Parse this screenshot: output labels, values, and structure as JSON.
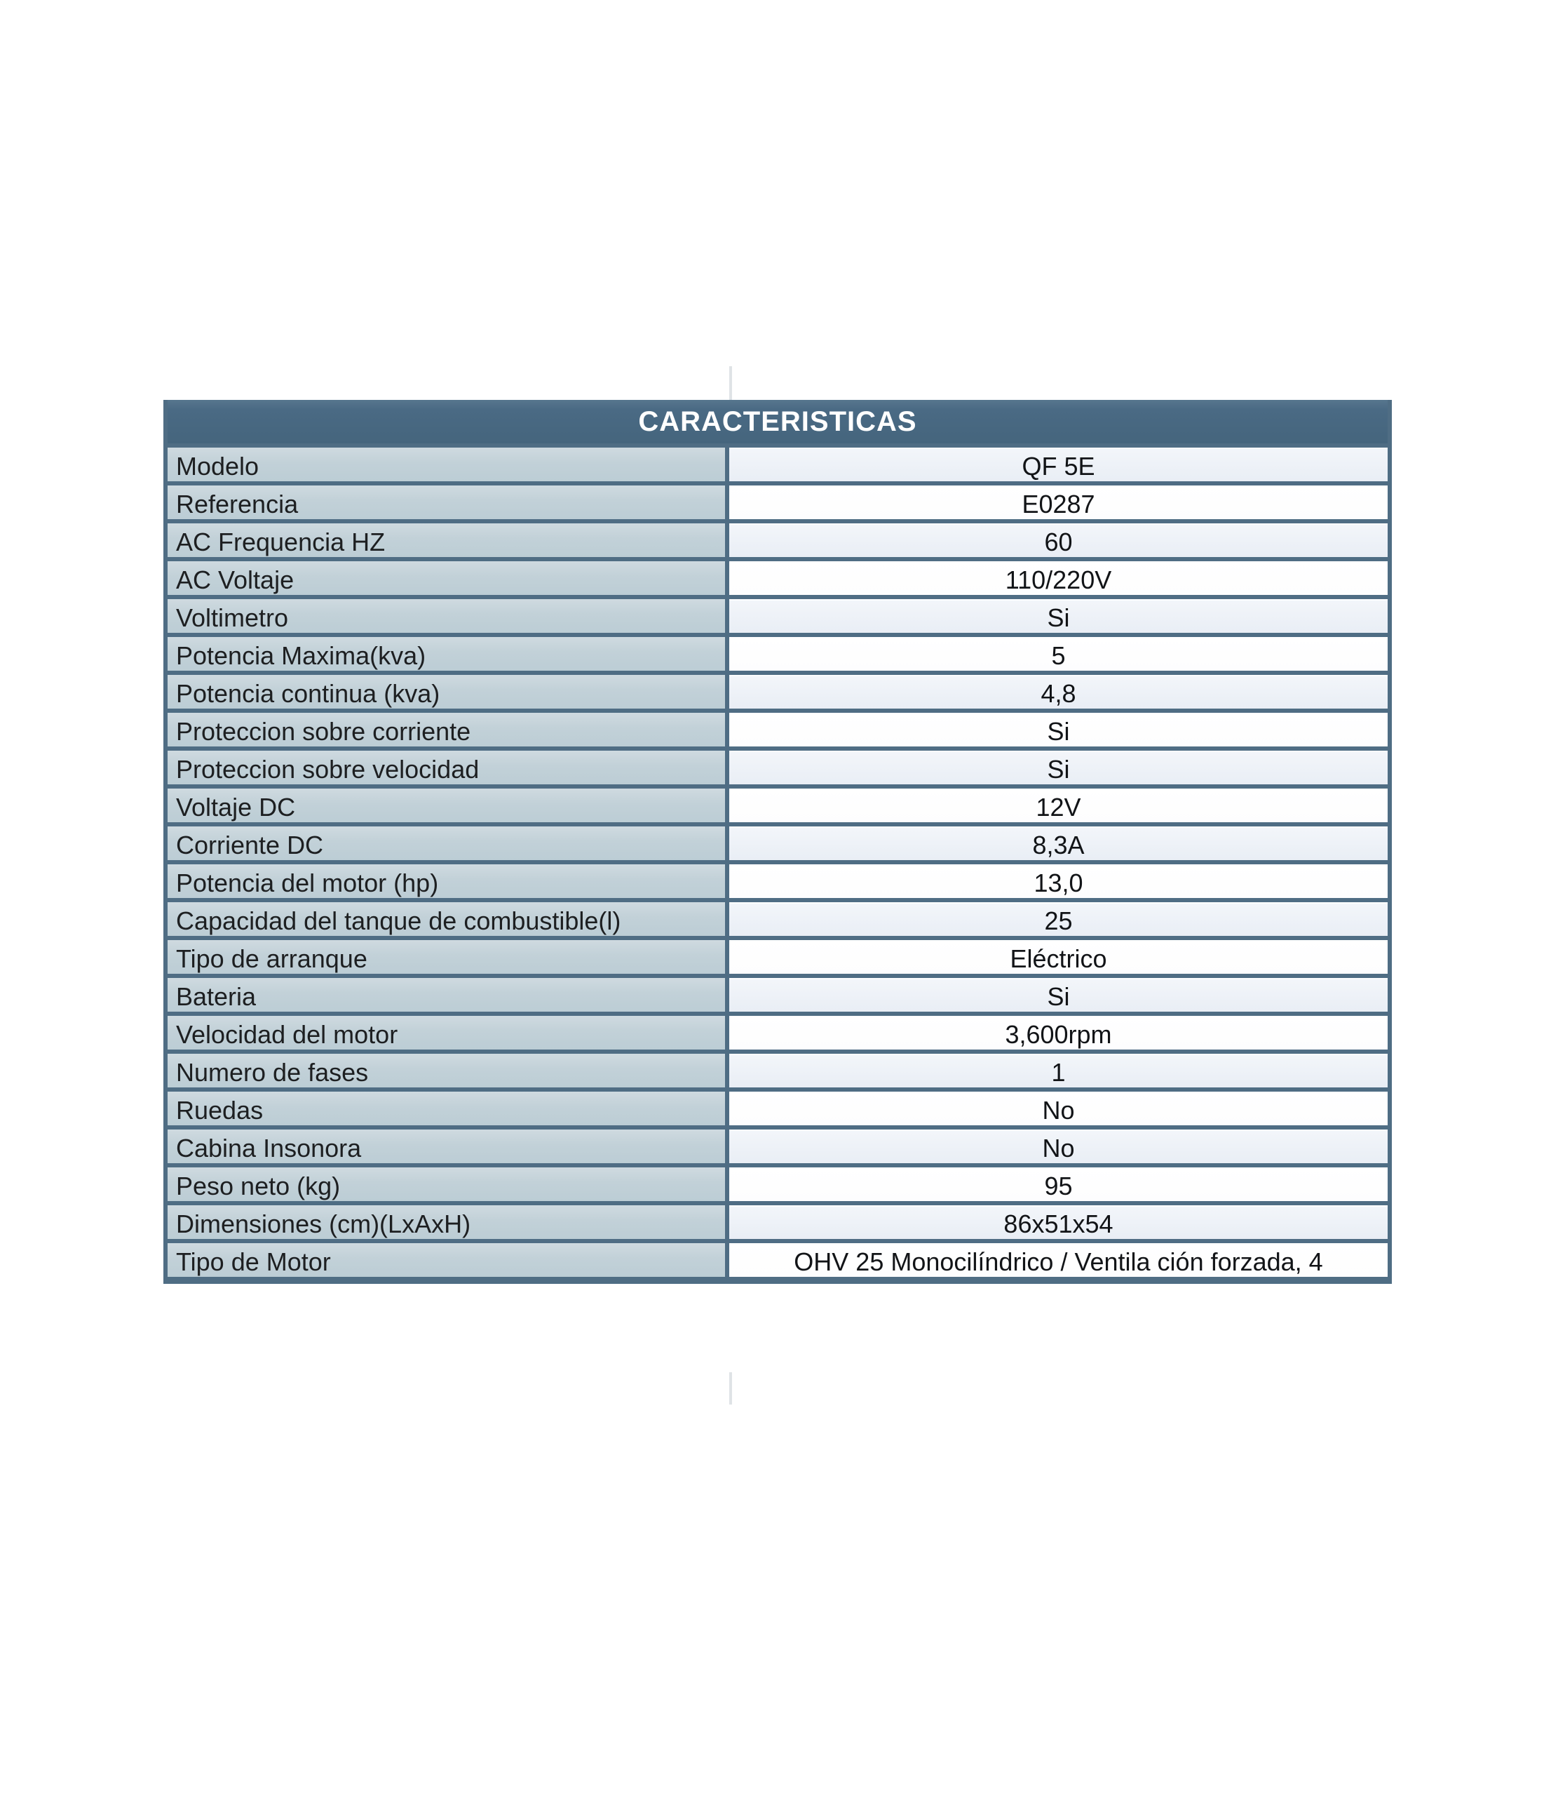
{
  "table": {
    "title": "CARACTERISTICAS",
    "rows": [
      {
        "label": "Modelo",
        "value": "QF 5E"
      },
      {
        "label": "Referencia",
        "value": "E0287"
      },
      {
        "label": "AC Frequencia HZ",
        "value": "60"
      },
      {
        "label": "AC Voltaje",
        "value": "110/220V"
      },
      {
        "label": "Voltimetro",
        "value": "Si"
      },
      {
        "label": "Potencia Maxima(kva)",
        "value": "5"
      },
      {
        "label": "Potencia continua (kva)",
        "value": "4,8"
      },
      {
        "label": "Proteccion sobre corriente",
        "value": "Si"
      },
      {
        "label": "Proteccion sobre velocidad",
        "value": "Si"
      },
      {
        "label": "Voltaje DC",
        "value": "12V"
      },
      {
        "label": "Corriente DC",
        "value": "8,3A"
      },
      {
        "label": "Potencia del motor (hp)",
        "value": "13,0"
      },
      {
        "label": "Capacidad del tanque de combustible(l)",
        "value": "25"
      },
      {
        "label": "Tipo de arranque",
        "value": "Eléctrico"
      },
      {
        "label": "Bateria",
        "value": "Si"
      },
      {
        "label": "Velocidad del motor",
        "value": "3,600rpm"
      },
      {
        "label": "Numero de fases",
        "value": "1"
      },
      {
        "label": "Ruedas",
        "value": "No"
      },
      {
        "label": "Cabina Insonora",
        "value": "No"
      },
      {
        "label": "Peso neto (kg)",
        "value": "95"
      },
      {
        "label": "Dimensiones (cm)(LxAxH)",
        "value": "86x51x54"
      },
      {
        "label": "Tipo de Motor",
        "value": "OHV 25 Monocilíndrico / Ventila ción forzada, 4"
      }
    ]
  },
  "colors": {
    "header_bg": "#4a6a84",
    "header_text": "#ffffff",
    "label_bg": "#c2d1d8",
    "row_bg": "#fdfdfe",
    "row_alt_bg": "#edf1f7",
    "border": "#4f6d84",
    "text": "#1d1f21"
  }
}
